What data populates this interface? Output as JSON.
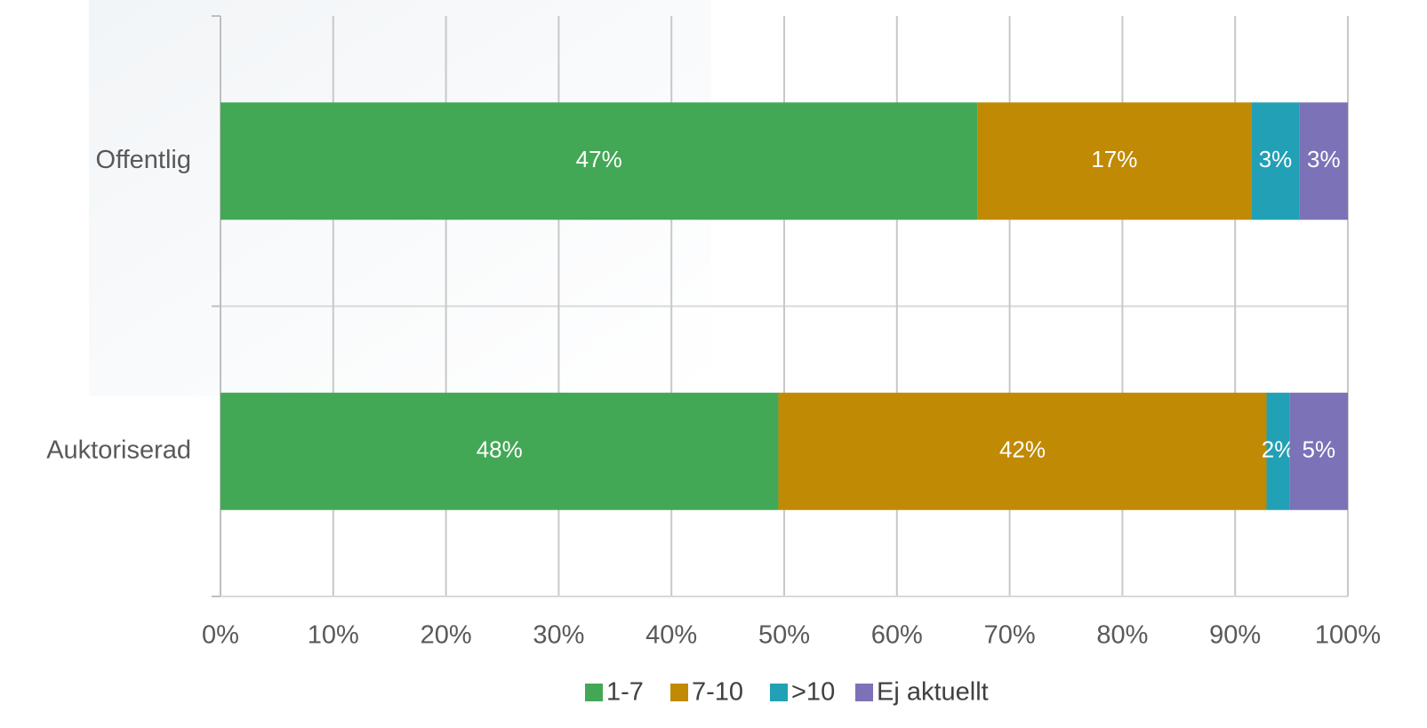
{
  "chart_data": {
    "type": "bar",
    "orientation": "horizontal",
    "stack": "percent",
    "categories": [
      "Offentlig",
      "Auktoriserad"
    ],
    "series": [
      {
        "name": "1-7",
        "color": "#43a855",
        "values": [
          47,
          48
        ],
        "value_labels": [
          "47%",
          "48%"
        ]
      },
      {
        "name": "7-10",
        "color": "#c08a04",
        "values": [
          17,
          42
        ],
        "value_labels": [
          "17%",
          "42%"
        ]
      },
      {
        "name": ">10",
        "color": "#22a0b5",
        "values": [
          3,
          2
        ],
        "value_labels": [
          "3%",
          "2%"
        ]
      },
      {
        "name": "Ej aktuellt",
        "color": "#7b72b8",
        "values": [
          3,
          5
        ],
        "value_labels": [
          "3%",
          "5%"
        ]
      }
    ],
    "xlim": [
      0,
      100
    ],
    "xticks": [
      {
        "value": 0,
        "label": "0%"
      },
      {
        "value": 10,
        "label": "10%"
      },
      {
        "value": 20,
        "label": "20%"
      },
      {
        "value": 30,
        "label": "30%"
      },
      {
        "value": 40,
        "label": "40%"
      },
      {
        "value": 50,
        "label": "50%"
      },
      {
        "value": 60,
        "label": "60%"
      },
      {
        "value": 70,
        "label": "70%"
      },
      {
        "value": 80,
        "label": "80%"
      },
      {
        "value": 90,
        "label": "90%"
      },
      {
        "value": 100,
        "label": "100%"
      }
    ],
    "grid": true,
    "legend": "bottom"
  }
}
